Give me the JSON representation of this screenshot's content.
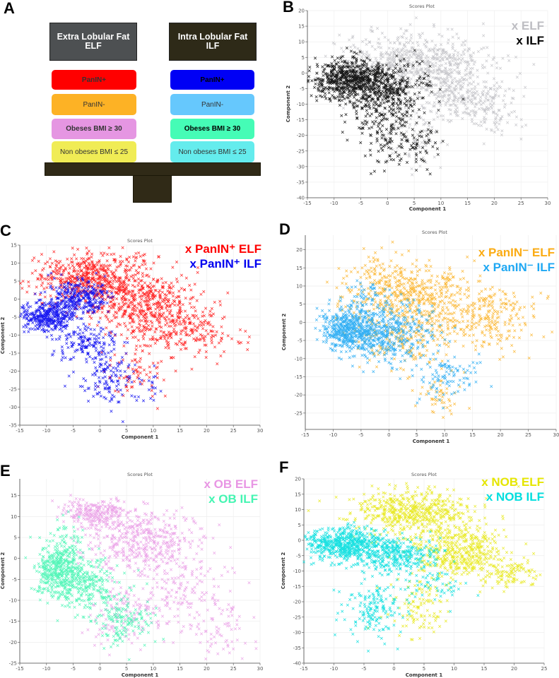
{
  "panel_a": {
    "letter": "A",
    "elf_header": [
      "Extra Lobular Fat",
      "ELF"
    ],
    "ilf_header": [
      "Intra Lobular Fat",
      "ILF"
    ],
    "elf_items": [
      {
        "label": "PanIN+",
        "color": "#ff0000"
      },
      {
        "label": "PanIN-",
        "color": "#fdb225"
      },
      {
        "label": "Obeses BMI ≥ 30",
        "color": "#e596e2"
      },
      {
        "label": "Non obeses BMI ≤ 25",
        "color": "#f0ec55"
      }
    ],
    "ilf_items": [
      {
        "label": "PanIN+",
        "color": "#0000f5"
      },
      {
        "label": "PanIN-",
        "color": "#66c8fd"
      },
      {
        "label": "Obeses BMI ≥ 30",
        "color": "#45fcb6"
      },
      {
        "label": "Non obeses BMI ≤ 25",
        "color": "#64eced"
      }
    ]
  },
  "chart_data": [
    {
      "id": "B",
      "letter": "B",
      "type": "scatter",
      "title": "Scores Plot",
      "xlabel": "Component 1",
      "ylabel": "Component 2",
      "xlim": [
        -15,
        30
      ],
      "ylim": [
        -40,
        20
      ],
      "xstep": 5,
      "ystep": 5,
      "grid": true,
      "legend": "top-right",
      "series": [
        {
          "name": "x ELF",
          "color": "#bdbdc2",
          "clusters": [
            [
              5,
              3,
              7,
              5,
              700
            ],
            [
              14,
              -8,
              4,
              4,
              250
            ],
            [
              20,
              -14,
              3,
              3,
              60
            ],
            [
              6,
              -22,
              3,
              4,
              70
            ]
          ]
        },
        {
          "name": "x ILF",
          "color": "#000000",
          "clusters": [
            [
              -7,
              -2,
              3.5,
              3,
              650
            ],
            [
              0,
              -6,
              4,
              4,
              350
            ],
            [
              1,
              -19,
              4,
              5,
              160
            ],
            [
              6,
              -25,
              2.5,
              3,
              30
            ]
          ]
        }
      ]
    },
    {
      "id": "C",
      "letter": "C",
      "type": "scatter",
      "title": "Scores Plot",
      "xlabel": "Component 1",
      "ylabel": "Component 2",
      "xlim": [
        -15,
        30
      ],
      "ylim": [
        -35,
        15
      ],
      "xstep": 5,
      "ystep": 5,
      "grid": true,
      "legend": "top-right",
      "series": [
        {
          "name": "x PanIN⁺ ELF",
          "color": "#ff0000",
          "clusters": [
            [
              -1,
              6,
              6,
              3.5,
              600
            ],
            [
              8,
              -2,
              5,
              4,
              450
            ],
            [
              16,
              -9,
              5,
              3.5,
              200
            ],
            [
              7,
              -20,
              3,
              5,
              80
            ]
          ]
        },
        {
          "name": "x PanIN⁺ ILF",
          "color": "#0000f0",
          "clusters": [
            [
              -10,
              -5,
              2.5,
              2,
              350
            ],
            [
              -4,
              0,
              3,
              2.5,
              300
            ],
            [
              -3,
              -12,
              3,
              3,
              150
            ],
            [
              1,
              -22,
              2.5,
              4,
              120
            ],
            [
              8,
              -24,
              2,
              3,
              25
            ]
          ]
        }
      ]
    },
    {
      "id": "D",
      "letter": "D",
      "type": "scatter",
      "title": "Scores Plot",
      "xlabel": "Component 1",
      "ylabel": "Component 2",
      "xlim": [
        -15,
        30
      ],
      "ylim": [
        -29.5,
        24
      ],
      "xstep": 5,
      "ystep": 5,
      "grid": true,
      "legend": "top-right",
      "series": [
        {
          "name": "x PanIN⁻ ELF",
          "color": "#fbac14",
          "clusters": [
            [
              4,
              8,
              6,
              4,
              450
            ],
            [
              18,
              1,
              5,
              4,
              250
            ],
            [
              3,
              -4,
              4,
              4,
              200
            ],
            [
              9,
              -20,
              2,
              3,
              50
            ],
            [
              -2,
              14,
              3,
              3,
              60
            ]
          ]
        },
        {
          "name": "x PanIN⁻ ILF",
          "color": "#1fa8f3",
          "clusters": [
            [
              -7,
              -2,
              2.5,
              3,
              450
            ],
            [
              0,
              -3,
              4,
              4,
              400
            ],
            [
              10,
              -14,
              3,
              3,
              100
            ],
            [
              -4,
              6,
              2,
              3,
              60
            ]
          ]
        }
      ]
    },
    {
      "id": "E",
      "letter": "E",
      "type": "scatter",
      "title": "Scores Plot",
      "xlabel": "Component 1",
      "ylabel": "Component 2",
      "xlim": [
        -15,
        30
      ],
      "ylim": [
        -25,
        19
      ],
      "xstep": 5,
      "ystep": 5,
      "grid": true,
      "legend": "top-right",
      "series": [
        {
          "name": "x OB ELF",
          "color": "#e896e4",
          "clusters": [
            [
              -1,
              11,
              3,
              1.6,
              250
            ],
            [
              8,
              4,
              5,
              4,
              450
            ],
            [
              15,
              -9,
              5,
              5,
              200
            ],
            [
              23,
              -18,
              3,
              3,
              50
            ],
            [
              4,
              -14,
              3,
              4,
              100
            ]
          ]
        },
        {
          "name": "x OB ILF",
          "color": "#44f5b2",
          "clusters": [
            [
              -8,
              -3,
              2,
              3,
              400
            ],
            [
              -2,
              -6,
              3,
              3,
              250
            ],
            [
              4,
              -15,
              3,
              3,
              150
            ],
            [
              -6,
              4,
              1.5,
              2.5,
              60
            ]
          ]
        }
      ]
    },
    {
      "id": "F",
      "letter": "F",
      "type": "scatter",
      "title": "Scores Plot",
      "xlabel": "Component 1",
      "ylabel": "Component 2",
      "xlim": [
        -15,
        25
      ],
      "ylim": [
        -40,
        20
      ],
      "xstep": 5,
      "ystep": 5,
      "grid": true,
      "legend": "top-right",
      "series": [
        {
          "name": "x NOB ELF",
          "color": "#e5e600",
          "clusters": [
            [
              3,
              9,
              5,
              3.5,
              550
            ],
            [
              11,
              -4,
              4,
              4,
              450
            ],
            [
              19,
              -11,
              2.5,
              2.5,
              100
            ],
            [
              4,
              -22,
              2.5,
              5,
              100
            ]
          ]
        },
        {
          "name": "x NOB ILF",
          "color": "#00dede",
          "clusters": [
            [
              -8,
              -1,
              3.5,
              2.5,
              550
            ],
            [
              0,
              -5,
              4,
              3,
              350
            ],
            [
              -3,
              -22,
              2.5,
              5,
              170
            ],
            [
              8,
              -15,
              3,
              3,
              50
            ]
          ]
        }
      ]
    }
  ]
}
